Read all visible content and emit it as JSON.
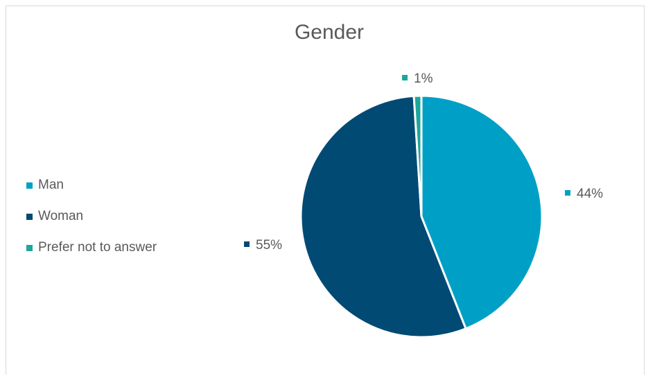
{
  "chart_data": {
    "type": "pie",
    "title": "Gender",
    "categories": [
      "Man",
      "Woman",
      "Prefer not to answer"
    ],
    "values": [
      44,
      55,
      1
    ],
    "value_labels": [
      "44%",
      "55%",
      "1%"
    ],
    "colors": [
      "#00a0c6",
      "#004a74",
      "#1ba79a"
    ],
    "legend_position": "left"
  }
}
